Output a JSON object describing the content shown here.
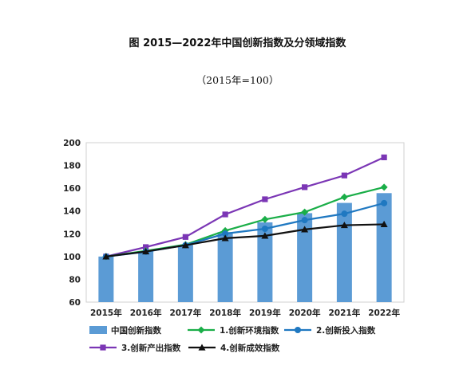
{
  "header": {
    "title": "图 2015—2022年中国创新指数及分领域指数",
    "subtitle": "（2015年=100）"
  },
  "chart_data": {
    "type": "bar+line",
    "categories": [
      "2015年",
      "2016年",
      "2017年",
      "2018年",
      "2019年",
      "2020年",
      "2021年",
      "2022年"
    ],
    "ylim": [
      60,
      200
    ],
    "yticks": [
      60,
      80,
      100,
      120,
      140,
      160,
      180,
      200
    ],
    "grid": false,
    "legend_position": "bottom",
    "bar_series": {
      "name": "中国创新指数",
      "color": "#5b9bd5",
      "values": [
        100,
        104.6,
        110.3,
        121.4,
        130.0,
        138.1,
        147.1,
        155.7
      ]
    },
    "series": [
      {
        "name": "1.创新环境指数",
        "color": "#1aae48",
        "marker": "diamond",
        "values": [
          100,
          105.0,
          110.5,
          122.7,
          132.6,
          139.0,
          152.2,
          160.9
        ]
      },
      {
        "name": "2.创新投入指数",
        "color": "#1f78c1",
        "marker": "circle",
        "values": [
          100,
          104.2,
          110.0,
          120.1,
          124.4,
          132.0,
          137.6,
          146.9
        ]
      },
      {
        "name": "3.创新产出指数",
        "color": "#7b36b5",
        "marker": "square",
        "values": [
          100,
          108.3,
          117.2,
          137.0,
          150.3,
          160.9,
          171.2,
          187.1
        ]
      },
      {
        "name": "4.创新成效指数",
        "color": "#111111",
        "marker": "triangle",
        "values": [
          100,
          104.4,
          109.9,
          116.1,
          118.2,
          123.8,
          127.5,
          128.3
        ]
      }
    ]
  }
}
